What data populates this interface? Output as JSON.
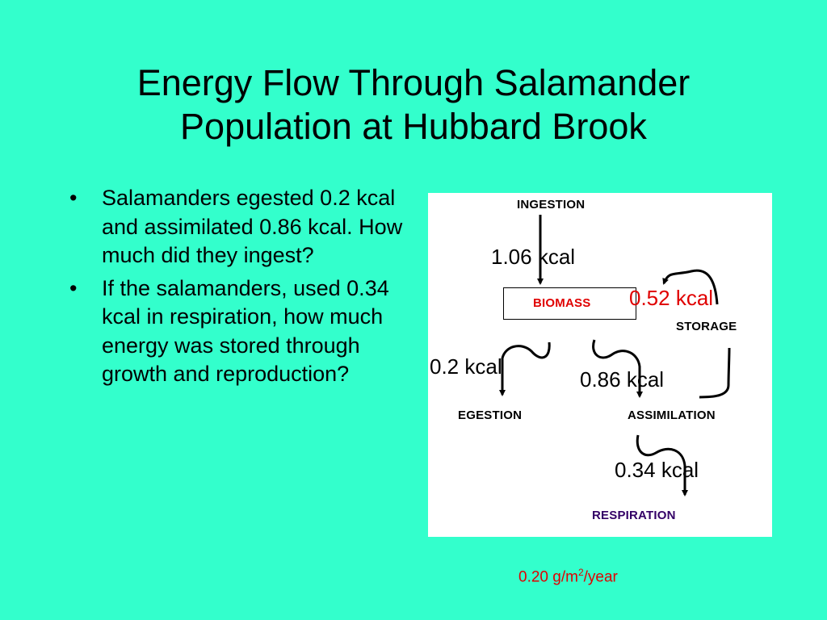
{
  "title": {
    "line1": "Energy Flow Through Salamander",
    "line2": "Population at Hubbard Brook"
  },
  "bullets": [
    "Salamanders egested 0.2 kcal and assimilated 0.86 kcal. How much did they ingest?",
    "If the salamanders, used 0.34 kcal in respiration, how much energy was stored through growth and reproduction?"
  ],
  "bullet_glyph": "•",
  "diagram": {
    "nodes": {
      "ingestion": "INGESTION",
      "biomass": "BIOMASS",
      "storage": "STORAGE",
      "egestion": "EGESTION",
      "assimilation": "ASSIMILATION",
      "respiration": "RESPIRATION"
    },
    "flows": {
      "ingested": "1.06 kcal",
      "stored": "0.52 kcal",
      "egested": "0.2 kcal",
      "assimilated": "0.86 kcal",
      "respired": "0.34 kcal"
    },
    "colors": {
      "biomass": "#e00000",
      "respiration": "#330066",
      "stored_label": "#e00000",
      "background": "#33ffcc"
    }
  },
  "footnote": {
    "prefix": "0.20 g/m",
    "superscript": "2",
    "suffix": "/year"
  }
}
